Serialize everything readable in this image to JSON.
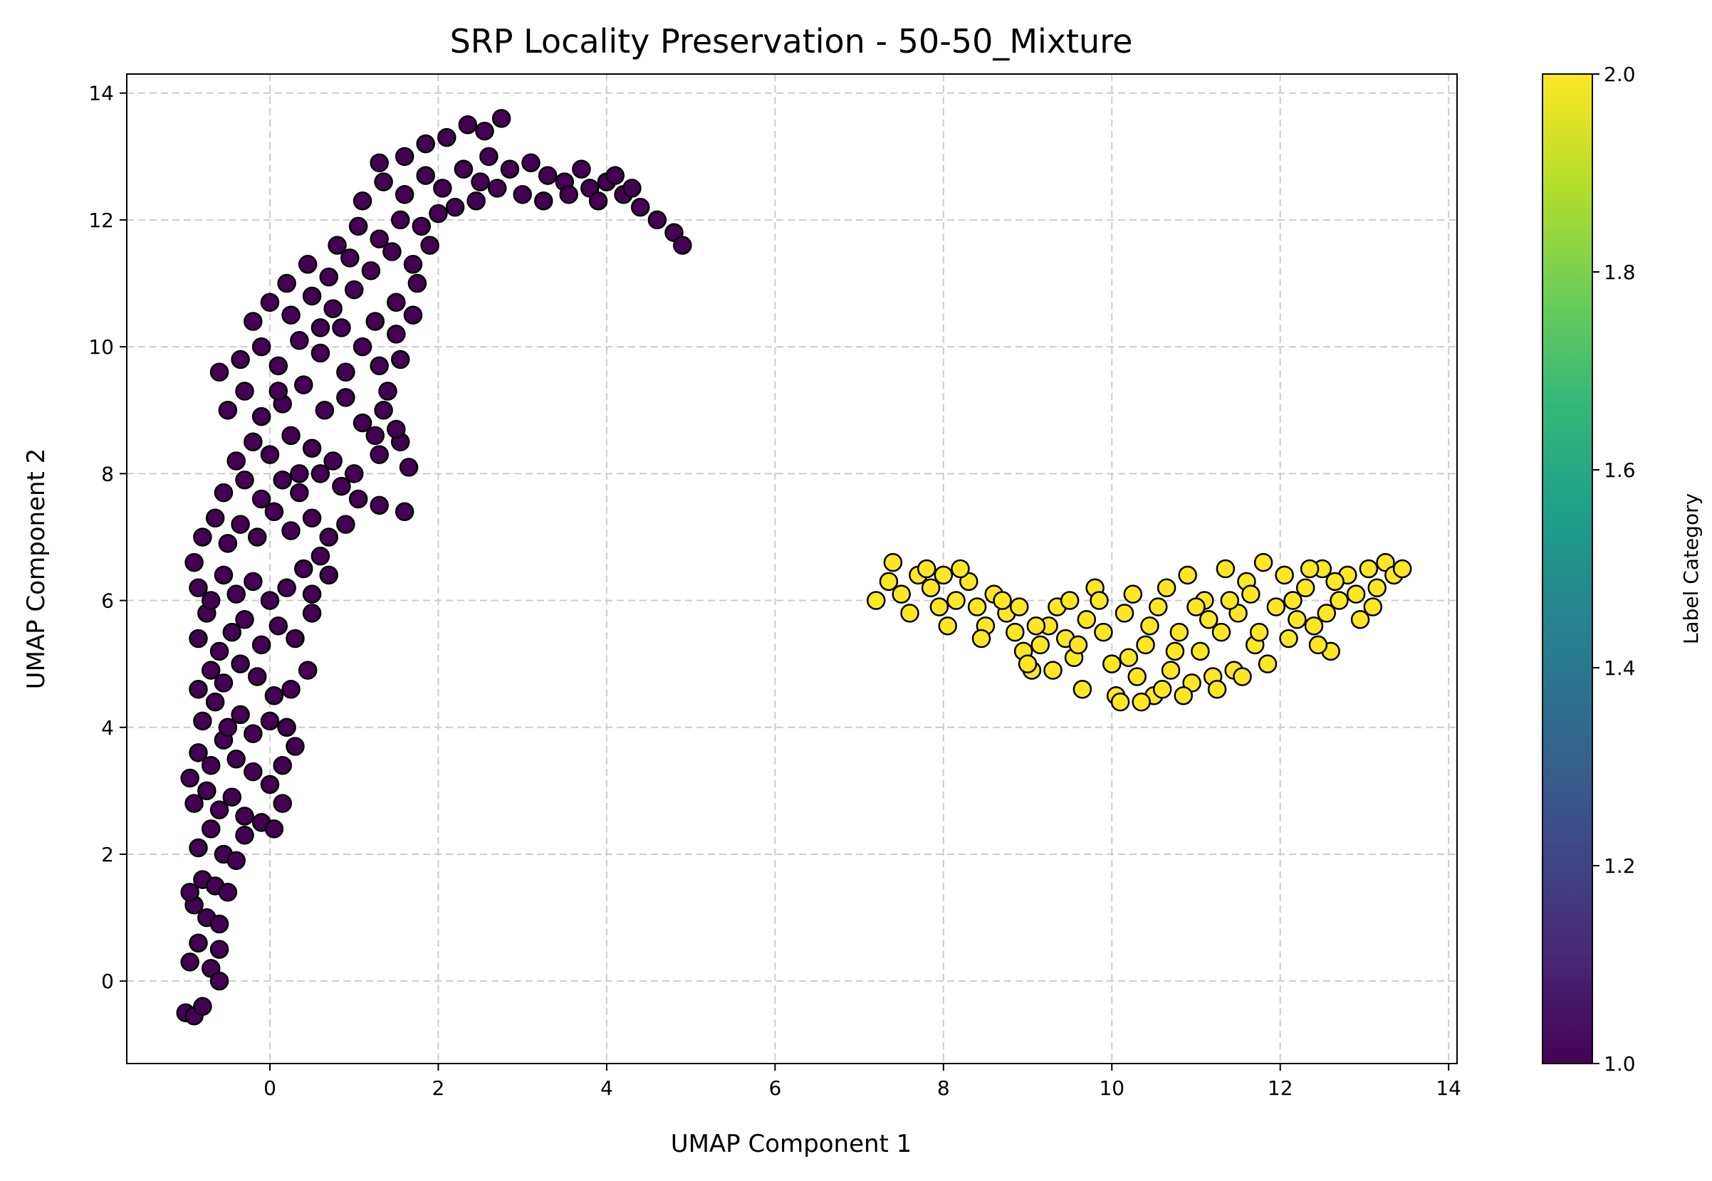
{
  "chart_data": {
    "type": "scatter",
    "title": "SRP Locality Preservation - 50-50_Mixture",
    "xlabel": "UMAP Component 1",
    "ylabel": "UMAP Component 2",
    "xlim": [
      -1.7,
      14.1
    ],
    "ylim": [
      -1.3,
      14.3
    ],
    "xticks": [
      0,
      2,
      4,
      6,
      8,
      10,
      12,
      14
    ],
    "yticks": [
      0,
      2,
      4,
      6,
      8,
      10,
      12,
      14
    ],
    "grid": true,
    "colorbar": {
      "label": "Label Category",
      "range": [
        1.0,
        2.0
      ],
      "ticks": [
        "1.0",
        "1.2",
        "1.4",
        "1.6",
        "1.8",
        "2.0"
      ],
      "colormap": "viridis",
      "colormap_stops": [
        "#440154",
        "#482878",
        "#3e4989",
        "#31688e",
        "#26828e",
        "#1f9e89",
        "#35b779",
        "#6ece58",
        "#b5de2b",
        "#fde725"
      ]
    },
    "series": [
      {
        "label_value": 1,
        "color": "#440154",
        "points": [
          [
            -1.0,
            -0.5
          ],
          [
            -0.9,
            -0.55
          ],
          [
            -0.8,
            -0.4
          ],
          [
            -0.95,
            0.3
          ],
          [
            -0.85,
            0.6
          ],
          [
            -0.7,
            0.2
          ],
          [
            -0.6,
            0.5
          ],
          [
            -0.9,
            1.2
          ],
          [
            -0.75,
            1.0
          ],
          [
            -0.6,
            0.9
          ],
          [
            -0.8,
            1.6
          ],
          [
            -0.65,
            1.5
          ],
          [
            -0.5,
            1.4
          ],
          [
            -0.85,
            2.1
          ],
          [
            -0.7,
            2.4
          ],
          [
            -0.55,
            2.0
          ],
          [
            -0.4,
            1.9
          ],
          [
            -0.3,
            2.3
          ],
          [
            -0.9,
            2.8
          ],
          [
            -0.95,
            3.2
          ],
          [
            -0.75,
            3.0
          ],
          [
            -0.6,
            2.7
          ],
          [
            -0.45,
            2.9
          ],
          [
            -0.3,
            2.6
          ],
          [
            -0.1,
            2.5
          ],
          [
            0.05,
            2.4
          ],
          [
            0.15,
            2.8
          ],
          [
            -0.85,
            3.6
          ],
          [
            -0.7,
            3.4
          ],
          [
            -0.55,
            3.8
          ],
          [
            -0.4,
            3.5
          ],
          [
            -0.2,
            3.3
          ],
          [
            0.0,
            3.1
          ],
          [
            0.15,
            3.4
          ],
          [
            -0.8,
            4.1
          ],
          [
            -0.65,
            4.4
          ],
          [
            -0.5,
            4.0
          ],
          [
            -0.35,
            4.2
          ],
          [
            -0.2,
            3.9
          ],
          [
            0.0,
            4.1
          ],
          [
            0.2,
            4.0
          ],
          [
            -0.85,
            4.6
          ],
          [
            -0.7,
            4.9
          ],
          [
            -0.55,
            4.7
          ],
          [
            -0.35,
            5.0
          ],
          [
            -0.15,
            4.8
          ],
          [
            0.05,
            4.5
          ],
          [
            0.25,
            4.6
          ],
          [
            0.45,
            4.9
          ],
          [
            -0.85,
            5.4
          ],
          [
            -0.75,
            5.8
          ],
          [
            -0.6,
            5.2
          ],
          [
            -0.45,
            5.5
          ],
          [
            -0.3,
            5.7
          ],
          [
            -0.1,
            5.3
          ],
          [
            0.1,
            5.6
          ],
          [
            0.3,
            5.4
          ],
          [
            0.5,
            5.8
          ],
          [
            -0.85,
            6.2
          ],
          [
            -0.9,
            6.6
          ],
          [
            -0.7,
            6.0
          ],
          [
            -0.55,
            6.4
          ],
          [
            -0.4,
            6.1
          ],
          [
            -0.2,
            6.3
          ],
          [
            0.0,
            6.0
          ],
          [
            0.2,
            6.2
          ],
          [
            0.4,
            6.5
          ],
          [
            0.6,
            6.7
          ],
          [
            -0.8,
            7.0
          ],
          [
            -0.65,
            7.3
          ],
          [
            -0.5,
            6.9
          ],
          [
            -0.35,
            7.2
          ],
          [
            -0.15,
            7.0
          ],
          [
            0.05,
            7.4
          ],
          [
            0.25,
            7.1
          ],
          [
            0.5,
            7.3
          ],
          [
            0.7,
            7.0
          ],
          [
            0.9,
            7.2
          ],
          [
            -0.55,
            7.7
          ],
          [
            -0.3,
            7.9
          ],
          [
            -0.1,
            7.6
          ],
          [
            0.15,
            7.9
          ],
          [
            0.35,
            7.7
          ],
          [
            0.6,
            8.0
          ],
          [
            0.85,
            7.8
          ],
          [
            1.05,
            7.6
          ],
          [
            1.3,
            7.5
          ],
          [
            1.6,
            7.4
          ],
          [
            -0.4,
            8.2
          ],
          [
            -0.2,
            8.5
          ],
          [
            0.0,
            8.3
          ],
          [
            0.25,
            8.6
          ],
          [
            0.5,
            8.4
          ],
          [
            0.75,
            8.2
          ],
          [
            1.0,
            8.0
          ],
          [
            1.3,
            8.3
          ],
          [
            1.55,
            8.5
          ],
          [
            1.65,
            8.1
          ],
          [
            -0.5,
            9.0
          ],
          [
            -0.3,
            9.3
          ],
          [
            -0.1,
            8.9
          ],
          [
            0.15,
            9.1
          ],
          [
            0.4,
            9.4
          ],
          [
            0.65,
            9.0
          ],
          [
            0.9,
            9.2
          ],
          [
            1.1,
            8.8
          ],
          [
            1.35,
            9.0
          ],
          [
            1.5,
            8.7
          ],
          [
            -0.6,
            9.6
          ],
          [
            -0.35,
            9.8
          ],
          [
            -0.1,
            10.0
          ],
          [
            0.1,
            9.7
          ],
          [
            0.35,
            10.1
          ],
          [
            0.6,
            9.9
          ],
          [
            0.85,
            10.3
          ],
          [
            1.1,
            10.0
          ],
          [
            1.3,
            9.7
          ],
          [
            1.55,
            9.8
          ],
          [
            -0.2,
            10.4
          ],
          [
            0.0,
            10.7
          ],
          [
            0.25,
            10.5
          ],
          [
            0.5,
            10.8
          ],
          [
            0.75,
            10.6
          ],
          [
            1.0,
            10.9
          ],
          [
            1.25,
            10.4
          ],
          [
            1.5,
            10.7
          ],
          [
            1.7,
            10.5
          ],
          [
            0.2,
            11.0
          ],
          [
            0.45,
            11.3
          ],
          [
            0.7,
            11.1
          ],
          [
            0.95,
            11.4
          ],
          [
            1.2,
            11.2
          ],
          [
            1.45,
            11.5
          ],
          [
            1.7,
            11.3
          ],
          [
            1.9,
            11.6
          ],
          [
            0.8,
            11.6
          ],
          [
            1.05,
            11.9
          ],
          [
            1.3,
            11.7
          ],
          [
            1.55,
            12.0
          ],
          [
            1.8,
            11.9
          ],
          [
            2.0,
            12.1
          ],
          [
            1.1,
            12.3
          ],
          [
            1.35,
            12.6
          ],
          [
            1.6,
            12.4
          ],
          [
            1.85,
            12.7
          ],
          [
            2.05,
            12.5
          ],
          [
            2.3,
            12.8
          ],
          [
            2.5,
            12.6
          ],
          [
            1.3,
            12.9
          ],
          [
            1.6,
            13.0
          ],
          [
            1.85,
            13.2
          ],
          [
            2.1,
            13.3
          ],
          [
            2.35,
            13.5
          ],
          [
            2.55,
            13.4
          ],
          [
            2.75,
            13.6
          ],
          [
            2.6,
            13.0
          ],
          [
            2.85,
            12.8
          ],
          [
            3.1,
            12.9
          ],
          [
            3.3,
            12.7
          ],
          [
            3.5,
            12.6
          ],
          [
            3.0,
            12.4
          ],
          [
            3.25,
            12.3
          ],
          [
            3.55,
            12.4
          ],
          [
            3.8,
            12.5
          ],
          [
            4.0,
            12.6
          ],
          [
            4.2,
            12.4
          ],
          [
            3.9,
            12.3
          ],
          [
            4.4,
            12.2
          ],
          [
            4.6,
            12.0
          ],
          [
            4.8,
            11.8
          ],
          [
            4.9,
            11.6
          ],
          [
            4.3,
            12.5
          ],
          [
            2.2,
            12.2
          ],
          [
            2.45,
            12.3
          ],
          [
            2.7,
            12.5
          ],
          [
            3.7,
            12.8
          ],
          [
            4.1,
            12.7
          ],
          [
            -0.95,
            1.4
          ],
          [
            -0.6,
            0.0
          ],
          [
            0.3,
            3.7
          ],
          [
            0.5,
            6.1
          ],
          [
            0.7,
            6.4
          ],
          [
            0.35,
            8.0
          ],
          [
            0.9,
            9.6
          ],
          [
            1.25,
            8.6
          ],
          [
            1.4,
            9.3
          ],
          [
            1.5,
            10.2
          ],
          [
            1.75,
            11.0
          ],
          [
            0.6,
            10.3
          ],
          [
            0.1,
            9.3
          ]
        ]
      },
      {
        "label_value": 2,
        "color": "#fde725",
        "points": [
          [
            7.2,
            6.0
          ],
          [
            7.35,
            6.3
          ],
          [
            7.4,
            6.6
          ],
          [
            7.5,
            6.1
          ],
          [
            7.6,
            5.8
          ],
          [
            7.7,
            6.4
          ],
          [
            7.85,
            6.2
          ],
          [
            8.0,
            6.4
          ],
          [
            8.05,
            5.6
          ],
          [
            8.15,
            6.0
          ],
          [
            8.3,
            6.3
          ],
          [
            8.4,
            5.9
          ],
          [
            8.5,
            5.6
          ],
          [
            8.6,
            6.1
          ],
          [
            8.75,
            5.8
          ],
          [
            8.85,
            5.5
          ],
          [
            8.95,
            5.2
          ],
          [
            9.05,
            4.9
          ],
          [
            9.15,
            5.3
          ],
          [
            9.25,
            5.6
          ],
          [
            9.35,
            5.9
          ],
          [
            9.45,
            5.4
          ],
          [
            9.55,
            5.1
          ],
          [
            9.65,
            4.6
          ],
          [
            9.7,
            5.7
          ],
          [
            9.8,
            6.2
          ],
          [
            9.9,
            5.5
          ],
          [
            10.0,
            5.0
          ],
          [
            10.05,
            4.5
          ],
          [
            10.15,
            5.8
          ],
          [
            10.25,
            6.1
          ],
          [
            10.3,
            4.8
          ],
          [
            10.4,
            5.3
          ],
          [
            10.5,
            4.5
          ],
          [
            10.55,
            5.9
          ],
          [
            10.65,
            6.2
          ],
          [
            10.7,
            4.9
          ],
          [
            10.8,
            5.5
          ],
          [
            10.9,
            6.4
          ],
          [
            10.95,
            4.7
          ],
          [
            11.05,
            5.2
          ],
          [
            11.1,
            6.0
          ],
          [
            11.2,
            4.8
          ],
          [
            11.3,
            5.5
          ],
          [
            11.35,
            6.5
          ],
          [
            11.45,
            4.9
          ],
          [
            11.5,
            5.8
          ],
          [
            11.6,
            6.3
          ],
          [
            11.7,
            5.3
          ],
          [
            11.8,
            6.6
          ],
          [
            11.85,
            5.0
          ],
          [
            11.95,
            5.9
          ],
          [
            12.05,
            6.4
          ],
          [
            12.1,
            5.4
          ],
          [
            12.2,
            5.7
          ],
          [
            12.3,
            6.2
          ],
          [
            12.4,
            5.6
          ],
          [
            12.5,
            6.5
          ],
          [
            12.55,
            5.8
          ],
          [
            12.6,
            5.2
          ],
          [
            12.7,
            6.0
          ],
          [
            12.8,
            6.4
          ],
          [
            12.9,
            6.1
          ],
          [
            12.95,
            5.7
          ],
          [
            13.05,
            6.5
          ],
          [
            13.15,
            6.2
          ],
          [
            13.25,
            6.6
          ],
          [
            13.35,
            6.4
          ],
          [
            13.45,
            6.5
          ],
          [
            10.1,
            4.4
          ],
          [
            10.35,
            4.4
          ],
          [
            10.6,
            4.6
          ],
          [
            11.25,
            4.6
          ],
          [
            11.55,
            4.8
          ],
          [
            9.3,
            4.9
          ],
          [
            9.0,
            5.0
          ],
          [
            8.2,
            6.5
          ],
          [
            7.95,
            5.9
          ],
          [
            9.6,
            5.3
          ],
          [
            10.75,
            5.2
          ],
          [
            11.15,
            5.7
          ],
          [
            11.65,
            6.1
          ],
          [
            12.15,
            6.0
          ],
          [
            12.45,
            5.3
          ],
          [
            10.45,
            5.6
          ],
          [
            9.85,
            6.0
          ],
          [
            8.7,
            6.0
          ],
          [
            8.45,
            5.4
          ],
          [
            7.8,
            6.5
          ],
          [
            11.4,
            6.0
          ],
          [
            12.65,
            6.3
          ],
          [
            13.1,
            5.9
          ],
          [
            10.2,
            5.1
          ],
          [
            11.0,
            5.9
          ],
          [
            11.75,
            5.5
          ],
          [
            12.35,
            6.5
          ],
          [
            9.5,
            6.0
          ],
          [
            10.85,
            4.5
          ],
          [
            9.1,
            5.6
          ],
          [
            8.9,
            5.9
          ]
        ]
      }
    ]
  }
}
